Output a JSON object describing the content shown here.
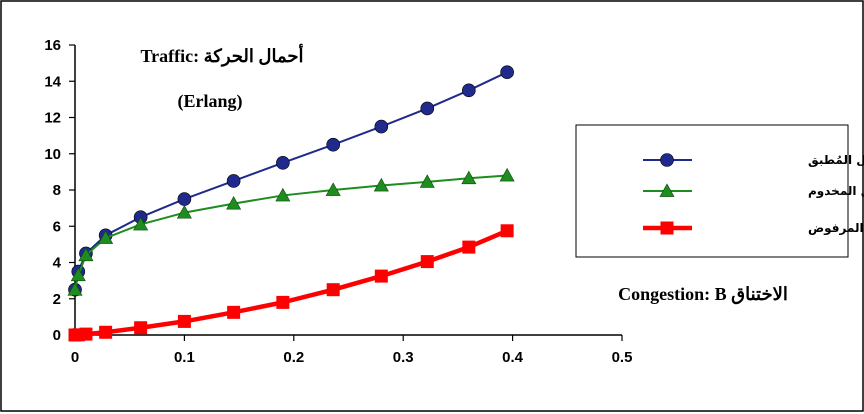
{
  "chart_data": {
    "type": "line",
    "title_line1": "Traffic: أحمال الحركة",
    "title_line2": "(Erlang)",
    "xlabel": "Congestion: B الاختناق",
    "ylabel": "",
    "xlim": [
      0,
      0.5
    ],
    "ylim": [
      0,
      16
    ],
    "x_ticks": [
      "0",
      "0.1",
      "0.2",
      "0.3",
      "0.4",
      "0.5"
    ],
    "y_ticks": [
      "0",
      "2",
      "4",
      "6",
      "8",
      "10",
      "12",
      "14",
      "16"
    ],
    "x_tick_values": [
      0,
      0.1,
      0.2,
      0.3,
      0.4,
      0.5
    ],
    "y_tick_values": [
      0,
      2,
      4,
      6,
      8,
      10,
      12,
      14,
      16
    ],
    "grid": false,
    "legend_position": "right",
    "series": [
      {
        "name": "الحمل المُطبق",
        "marker": "circle",
        "color": "#1f2a8c",
        "points": [
          [
            0.0,
            2.5
          ],
          [
            0.003,
            3.5
          ],
          [
            0.01,
            4.5
          ],
          [
            0.028,
            5.5
          ],
          [
            0.06,
            6.5
          ],
          [
            0.1,
            7.5
          ],
          [
            0.145,
            8.5
          ],
          [
            0.19,
            9.5
          ],
          [
            0.236,
            10.5
          ],
          [
            0.28,
            11.5
          ],
          [
            0.322,
            12.5
          ],
          [
            0.36,
            13.5
          ],
          [
            0.395,
            14.5
          ]
        ]
      },
      {
        "name": "الحمل المخدوم",
        "marker": "triangle",
        "color": "#1f8c1f",
        "points": [
          [
            0.0,
            2.5
          ],
          [
            0.003,
            3.3
          ],
          [
            0.01,
            4.4
          ],
          [
            0.028,
            5.35
          ],
          [
            0.06,
            6.1
          ],
          [
            0.1,
            6.75
          ],
          [
            0.145,
            7.25
          ],
          [
            0.19,
            7.7
          ],
          [
            0.236,
            8.0
          ],
          [
            0.28,
            8.25
          ],
          [
            0.322,
            8.45
          ],
          [
            0.36,
            8.65
          ],
          [
            0.395,
            8.8
          ]
        ]
      },
      {
        "name": "الحمل المرفوض",
        "marker": "square",
        "color": "#ff0000",
        "points": [
          [
            0.0,
            0.0
          ],
          [
            0.003,
            0.01
          ],
          [
            0.01,
            0.05
          ],
          [
            0.028,
            0.15
          ],
          [
            0.06,
            0.4
          ],
          [
            0.1,
            0.75
          ],
          [
            0.145,
            1.25
          ],
          [
            0.19,
            1.8
          ],
          [
            0.236,
            2.5
          ],
          [
            0.28,
            3.25
          ],
          [
            0.322,
            4.05
          ],
          [
            0.36,
            4.85
          ],
          [
            0.395,
            5.75
          ]
        ]
      }
    ]
  }
}
